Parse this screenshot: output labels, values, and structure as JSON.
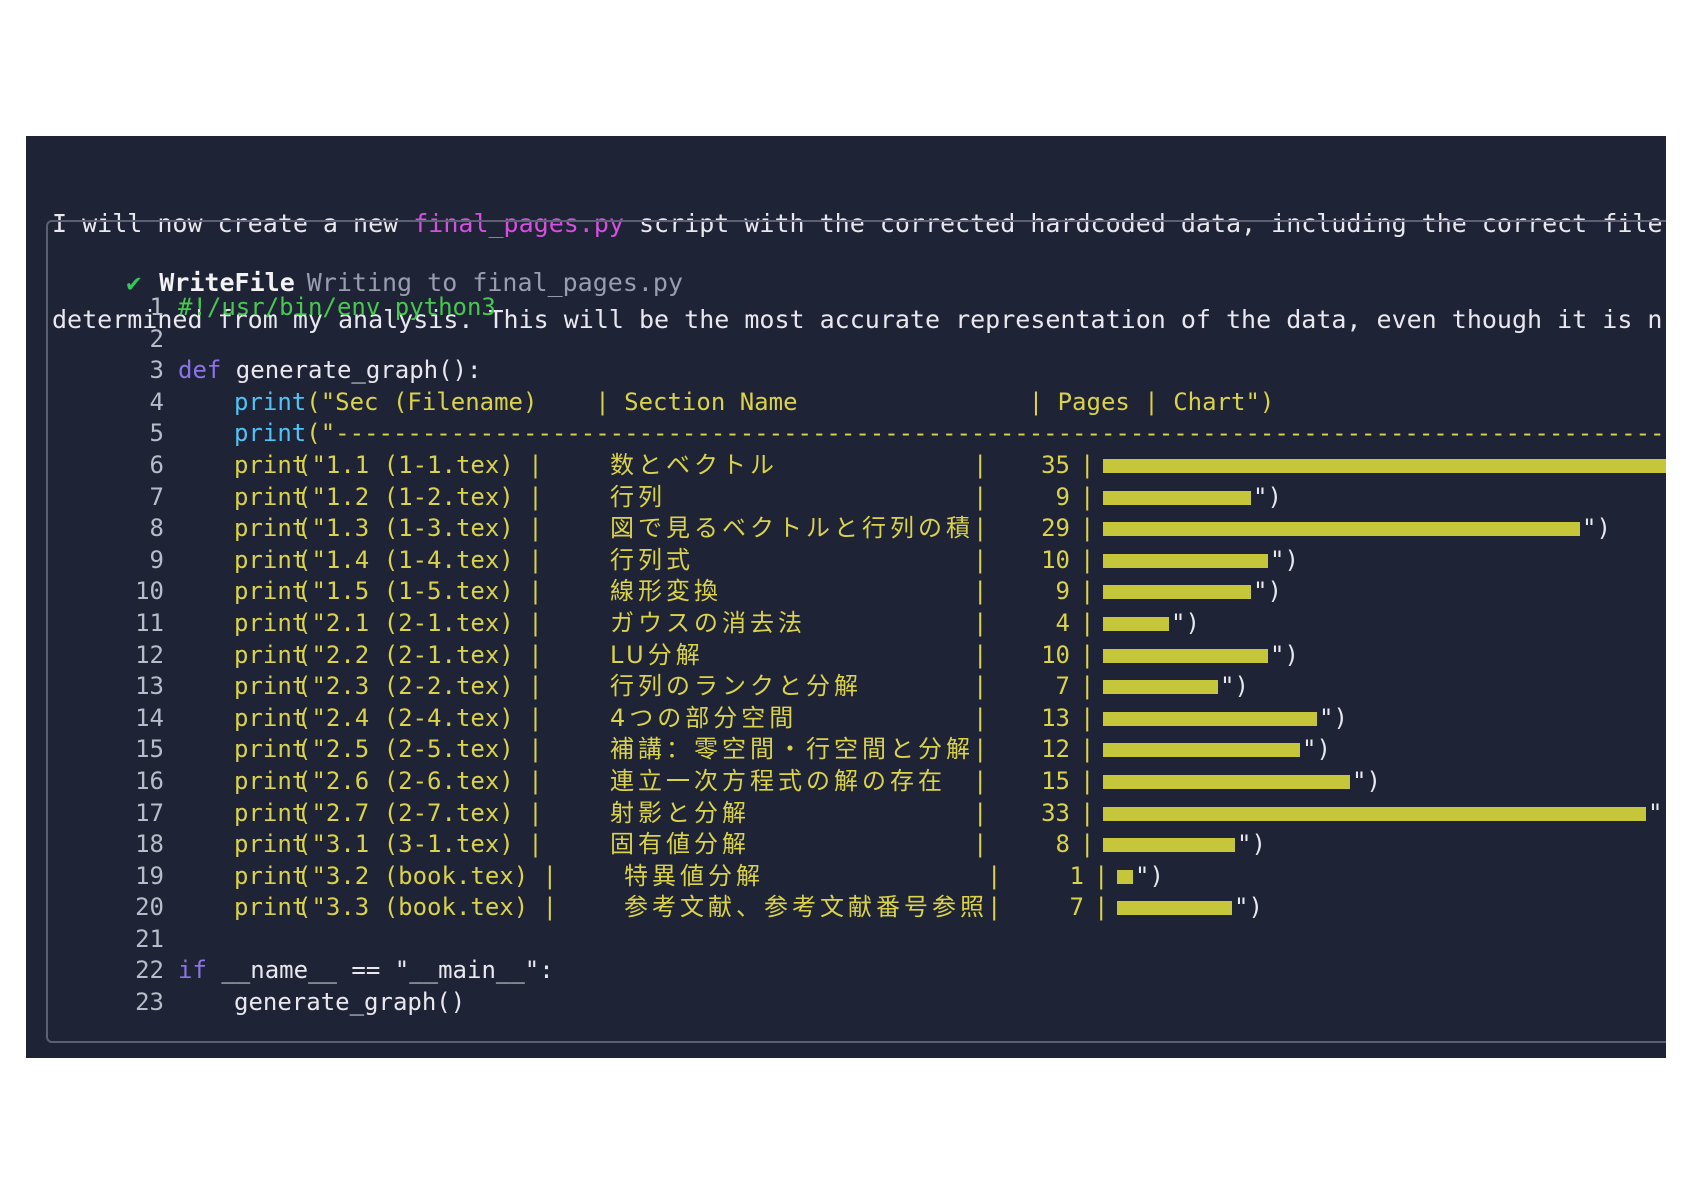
{
  "intro": {
    "line1_pre": "I will now create a new ",
    "line1_highlight": "final_pages.py",
    "line1_post": " script with the corrected hardcoded data, including the correct filenames",
    "line2": "determined from my analysis. This will be the most accurate representation of the data, even though it is not dy"
  },
  "tool": {
    "check": "✔",
    "name": "WriteFile",
    "description": "Writing to final_pages.py"
  },
  "code": {
    "shebang": "#!/usr/bin/env python3",
    "def_kw": "def",
    "def_rest": " generate_graph():",
    "header_print": "print",
    "header_str": "(\"Sec (Filename)    | Section Name                | Pages | Chart\")",
    "sep_print": "print",
    "sep_str": "(\"-----------------------------------------------------------------------------------------------------",
    "if_kw": "if",
    "if_rest": " __name__ == \"__main__\":",
    "call": "generate_graph()",
    "print_word": "print",
    "bar_tail": "\")",
    "bar_tail_first": "\""
  },
  "line_numbers": [
    "1",
    "2",
    "3",
    "4",
    "5",
    "6",
    "7",
    "8",
    "9",
    "10",
    "11",
    "12",
    "13",
    "14",
    "15",
    "16",
    "17",
    "18",
    "19",
    "20",
    "21",
    "22",
    "23"
  ],
  "rows": [
    {
      "sec": "1.1",
      "file": "1-1.tex",
      "name": "数とベクトル",
      "pages": "35"
    },
    {
      "sec": "1.2",
      "file": "1-2.tex",
      "name": "行列",
      "pages": "9"
    },
    {
      "sec": "1.3",
      "file": "1-3.tex",
      "name": "図で見るベクトルと行列の積",
      "pages": "29"
    },
    {
      "sec": "1.4",
      "file": "1-4.tex",
      "name": "行列式",
      "pages": "10"
    },
    {
      "sec": "1.5",
      "file": "1-5.tex",
      "name": "線形変換",
      "pages": "9"
    },
    {
      "sec": "2.1",
      "file": "2-1.tex",
      "name": "ガウスの消去法",
      "pages": "4"
    },
    {
      "sec": "2.2",
      "file": "2-1.tex",
      "name": "LU分解",
      "pages": "10"
    },
    {
      "sec": "2.3",
      "file": "2-2.tex",
      "name": "行列のランクと分解",
      "pages": "7"
    },
    {
      "sec": "2.4",
      "file": "2-4.tex",
      "name": "4つの部分空間",
      "pages": "13"
    },
    {
      "sec": "2.5",
      "file": "2-5.tex",
      "name": "補講：零空間・行空間と分解",
      "pages": "12"
    },
    {
      "sec": "2.6",
      "file": "2-6.tex",
      "name": "連立一次方程式の解の存在",
      "pages": "15"
    },
    {
      "sec": "2.7",
      "file": "2-7.tex",
      "name": "射影と分解",
      "pages": "33"
    },
    {
      "sec": "3.1",
      "file": "3-1.tex",
      "name": "固有値分解",
      "pages": "8"
    },
    {
      "sec": "3.2",
      "file": "book.tex",
      "name": "特異値分解",
      "pages": "1"
    },
    {
      "sec": "3.3",
      "file": "book.tex",
      "name": "参考文献、参考文献番号参照",
      "pages": "7"
    }
  ],
  "colors": {
    "background": "#1f2336",
    "keyword": "#8b74e6",
    "function": "#4fc3f7",
    "string": "#d9d24a",
    "bar": "#c6c63a",
    "shebang": "#47c84f",
    "highlight": "#d64fe0"
  }
}
